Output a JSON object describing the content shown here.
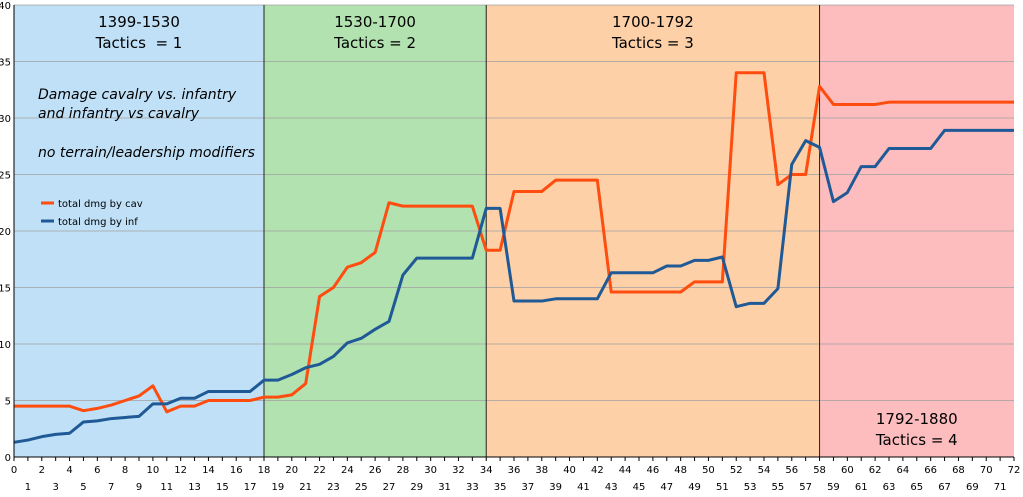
{
  "chart_data": {
    "type": "line",
    "xlim": [
      0,
      72
    ],
    "ylim": [
      0,
      40
    ],
    "y_ticks": [
      0,
      5,
      10,
      15,
      20,
      25,
      30,
      35,
      40
    ],
    "x_ticks": [
      0,
      1,
      2,
      3,
      4,
      5,
      6,
      7,
      8,
      9,
      10,
      11,
      12,
      13,
      14,
      15,
      16,
      17,
      18,
      19,
      20,
      21,
      22,
      23,
      24,
      25,
      26,
      27,
      28,
      29,
      30,
      31,
      32,
      33,
      34,
      35,
      36,
      37,
      38,
      39,
      40,
      41,
      42,
      43,
      44,
      45,
      46,
      47,
      48,
      49,
      50,
      51,
      52,
      53,
      54,
      55,
      56,
      57,
      58,
      59,
      60,
      61,
      62,
      63,
      64,
      65,
      66,
      67,
      68,
      69,
      70,
      71,
      72
    ],
    "grid": true,
    "eras": [
      {
        "from": 0,
        "to": 18,
        "color": "#bfe0f7",
        "title": "1399-1530",
        "subtitle": "Tactics  = 1"
      },
      {
        "from": 18,
        "to": 34,
        "color": "#b2e2b0",
        "title": "1530-1700",
        "subtitle": "Tactics = 2"
      },
      {
        "from": 34,
        "to": 58,
        "color": "#fdd0a8",
        "title": "1700-1792",
        "subtitle": "Tactics = 3"
      },
      {
        "from": 58,
        "to": 72,
        "color": "#fdbdbe",
        "title": "1792-1880",
        "subtitle": "Tactics = 4"
      }
    ],
    "annotations": [
      "Damage cavalry vs. infantry",
      "and infantry vs cavalry",
      "no terrain/leadership modifiers"
    ],
    "legend_position": "upper-left",
    "series": [
      {
        "name": "total dmg by cav",
        "color": "#ff4c0f",
        "values": [
          4.5,
          4.5,
          4.5,
          4.5,
          4.5,
          4.1,
          4.3,
          4.6,
          5.0,
          5.4,
          6.3,
          4.0,
          4.5,
          4.5,
          5.0,
          5.0,
          5.0,
          5.0,
          5.3,
          5.3,
          5.5,
          6.5,
          14.2,
          15.0,
          16.8,
          17.2,
          18.1,
          22.5,
          22.2,
          22.2,
          22.2,
          22.2,
          22.2,
          22.2,
          18.3,
          18.3,
          23.5,
          23.5,
          23.5,
          24.5,
          24.5,
          24.5,
          24.5,
          14.6,
          14.6,
          14.6,
          14.6,
          14.6,
          14.6,
          15.5,
          15.5,
          15.5,
          34.0,
          34.0,
          34.0,
          24.1,
          25.0,
          25.0,
          32.8,
          31.2,
          31.2,
          31.2,
          31.2,
          31.4,
          31.4,
          31.4,
          31.4,
          31.4,
          31.4,
          31.4,
          31.4,
          31.4,
          31.4
        ]
      },
      {
        "name": "total dmg by inf",
        "color": "#1f5a96",
        "values": [
          1.3,
          1.5,
          1.8,
          2.0,
          2.1,
          3.1,
          3.2,
          3.4,
          3.5,
          3.6,
          4.7,
          4.7,
          5.2,
          5.2,
          5.8,
          5.8,
          5.8,
          5.8,
          6.8,
          6.8,
          7.3,
          7.9,
          8.2,
          8.9,
          10.1,
          10.5,
          11.3,
          12.0,
          16.1,
          17.6,
          17.6,
          17.6,
          17.6,
          17.6,
          22.0,
          22.0,
          13.8,
          13.8,
          13.8,
          14.0,
          14.0,
          14.0,
          14.0,
          16.3,
          16.3,
          16.3,
          16.3,
          16.9,
          16.9,
          17.4,
          17.4,
          17.7,
          13.3,
          13.6,
          13.6,
          14.9,
          25.9,
          28.0,
          27.4,
          22.6,
          23.4,
          25.7,
          25.7,
          27.3,
          27.3,
          27.3,
          27.3,
          28.9,
          28.9,
          28.9,
          28.9,
          28.9,
          28.9
        ]
      }
    ]
  }
}
